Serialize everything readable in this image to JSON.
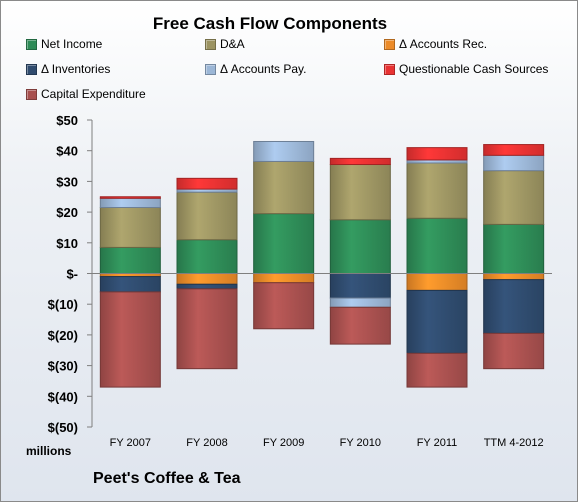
{
  "chart_data": {
    "type": "bar",
    "stacked": true,
    "title": "Free Cash Flow Components",
    "units_label": "millions",
    "footer": "Peet's Coffee & Tea",
    "categories": [
      "FY 2007",
      "FY 2008",
      "FY 2009",
      "FY 2010",
      "FY 2011",
      "TTM 4-2012"
    ],
    "ylim": [
      -50,
      50
    ],
    "yticks": [
      50,
      40,
      30,
      20,
      10,
      0,
      -10,
      -20,
      -30,
      -40,
      -50
    ],
    "ytick_labels": [
      "$50",
      "$40",
      "$30",
      "$20",
      "$10",
      "$-",
      "$(10)",
      "$(20)",
      "$(30)",
      "$(40)",
      "$(50)"
    ],
    "grid": false,
    "legend_position": "top",
    "series": [
      {
        "name": "Net Income",
        "color": "#2e8b57",
        "values": [
          8.5,
          11.0,
          19.5,
          17.5,
          18.0,
          16.0
        ]
      },
      {
        "name": "D&A",
        "color": "#9c9462",
        "values": [
          13.0,
          15.5,
          17.0,
          18.0,
          18.0,
          17.5
        ]
      },
      {
        "name": "Δ Accounts Rec.",
        "color": "#ec8b28",
        "values": [
          -1.0,
          -3.5,
          -3.0,
          0.0,
          -5.5,
          -2.0
        ]
      },
      {
        "name": "Δ Inventories",
        "color": "#2f4b6e",
        "values": [
          -5.0,
          -1.5,
          0.0,
          -8.0,
          -20.5,
          -17.5
        ]
      },
      {
        "name": "Δ Accounts Pay.",
        "color": "#9bb6d6",
        "values": [
          3.0,
          1.0,
          6.5,
          -3.0,
          1.0,
          5.0
        ]
      },
      {
        "name": "Questionable Cash Sources",
        "color": "#e83232",
        "values": [
          0.5,
          3.5,
          0.0,
          2.0,
          4.0,
          3.5
        ]
      },
      {
        "name": "Capital Expenditure",
        "color": "#a8504f",
        "values": [
          -31.0,
          -26.0,
          -15.0,
          -12.0,
          -11.0,
          -11.5
        ]
      }
    ]
  }
}
